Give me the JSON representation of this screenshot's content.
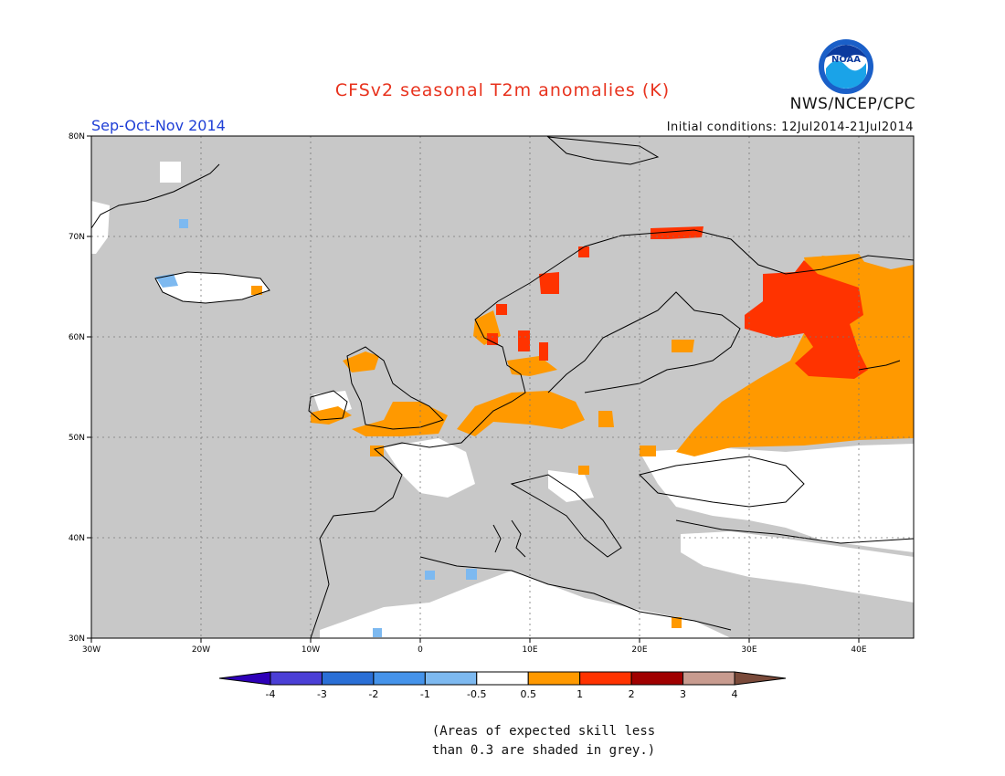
{
  "header": {
    "title": "CFSv2 seasonal T2m anomalies (K)",
    "season": "Sep-Oct-Nov 2014",
    "initial_conditions": "Initial conditions: 12Jul2014-21Jul2014",
    "organization": "NWS/NCEP/CPC",
    "logo_text": "NOAA"
  },
  "map": {
    "lon_range": [
      -30,
      45
    ],
    "lat_range": [
      30,
      80
    ],
    "lat_ticks": [
      "30N",
      "40N",
      "50N",
      "60N",
      "70N",
      "80N"
    ],
    "lon_ticks": [
      "30W",
      "20W",
      "10W",
      "0",
      "10E",
      "20E",
      "30E",
      "40E"
    ],
    "background_color": "#c8c8c8",
    "anomaly_regions": [
      {
        "name": "western-russia-warm",
        "level": "0.5-1",
        "color": "#ff9900"
      },
      {
        "name": "northwest-russia-hot",
        "level": "1-2",
        "color": "#ff3300"
      },
      {
        "name": "norway-coast-hot",
        "level": "1-2",
        "color": "#ff3300"
      },
      {
        "name": "kola-peninsula-hot",
        "level": "1-2",
        "color": "#ff3300"
      },
      {
        "name": "north-sea-warm",
        "level": "0.5-1",
        "color": "#ff9900"
      },
      {
        "name": "ireland-uk-warm",
        "level": "0.5-1",
        "color": "#ff9900"
      },
      {
        "name": "iceland-neutral",
        "level": "-0.5-0.5",
        "color": "#ffffff"
      },
      {
        "name": "north-africa-neutral",
        "level": "-0.5-0.5",
        "color": "#ffffff"
      },
      {
        "name": "black-sea-neutral",
        "level": "-0.5-0.5",
        "color": "#ffffff"
      },
      {
        "name": "iceland-cool",
        "level": "-1--0.5",
        "color": "#7db9f0"
      }
    ]
  },
  "colorbar": {
    "colors": [
      "#2e00b8",
      "#4b3fd6",
      "#2a6fd6",
      "#4593ea",
      "#7db9f0",
      "#ffffff",
      "#ff9900",
      "#ff3300",
      "#a00000",
      "#c89b8f",
      "#7a4a3a"
    ],
    "labels": [
      "-4",
      "-3",
      "-2",
      "-1",
      "-0.5",
      "0.5",
      "1",
      "2",
      "3",
      "4"
    ]
  },
  "footnote": {
    "line1": "(Areas of expected skill less",
    "line2": "than 0.3 are shaded in grey.)"
  }
}
